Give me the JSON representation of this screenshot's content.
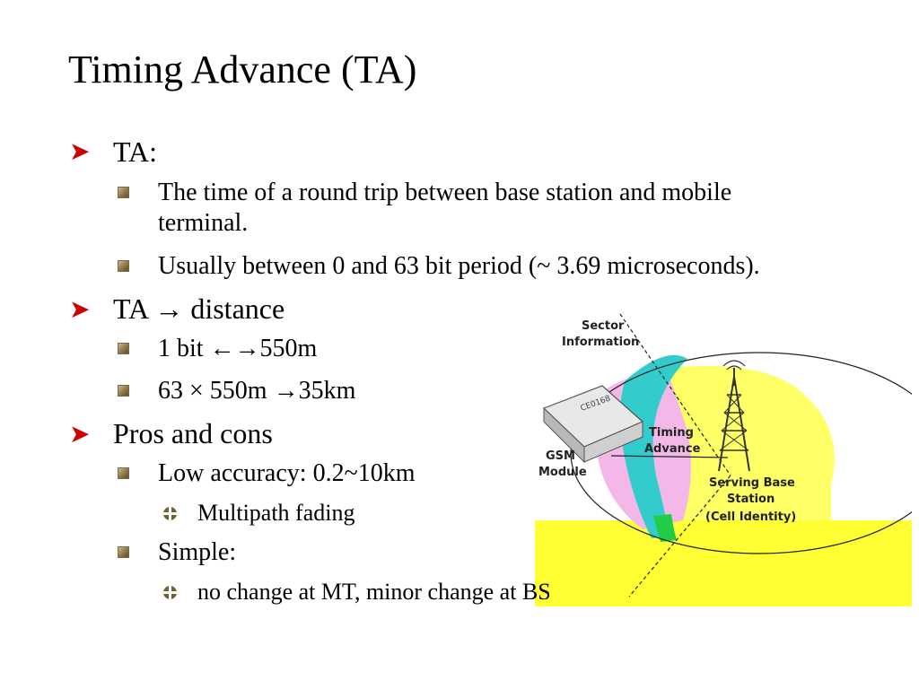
{
  "title": "Timing Advance (TA)",
  "bullets": {
    "ta": {
      "label": "TA:",
      "sub1": "The time of a round trip between base station and mobile",
      "sub1_cont": "terminal.",
      "sub2": "Usually between 0 and 63 bit period (~ 3.69 microseconds)."
    },
    "distance": {
      "label": "TA → distance",
      "sub1": "1 bit ←→550m",
      "sub2": "63 × 550m →35km"
    },
    "pros_cons": {
      "label": "Pros and cons",
      "sub1": "Low accuracy: 0.2~10km",
      "sub1_item": "Multipath fading",
      "sub2": "Simple:",
      "sub2_item": "no change at MT, minor change at BS"
    }
  },
  "diagram": {
    "sector_line1": "Sector",
    "sector_line2": "Information",
    "timing_line1": "Timing",
    "timing_line2": "Advance",
    "gsm_line1": "GSM",
    "gsm_line2": "Module",
    "bs_line1": "Serving Base",
    "bs_line2": "Station",
    "bs_line3": "(Cell Identity)",
    "module_mark": "CE0168"
  },
  "colors": {
    "bullet_arrow": "#cc0000",
    "highlight_yellow": "#ffff33",
    "zone_pink": "#f4b8e8",
    "arc_teal": "#33cccc",
    "arc_green": "#22cc44"
  }
}
